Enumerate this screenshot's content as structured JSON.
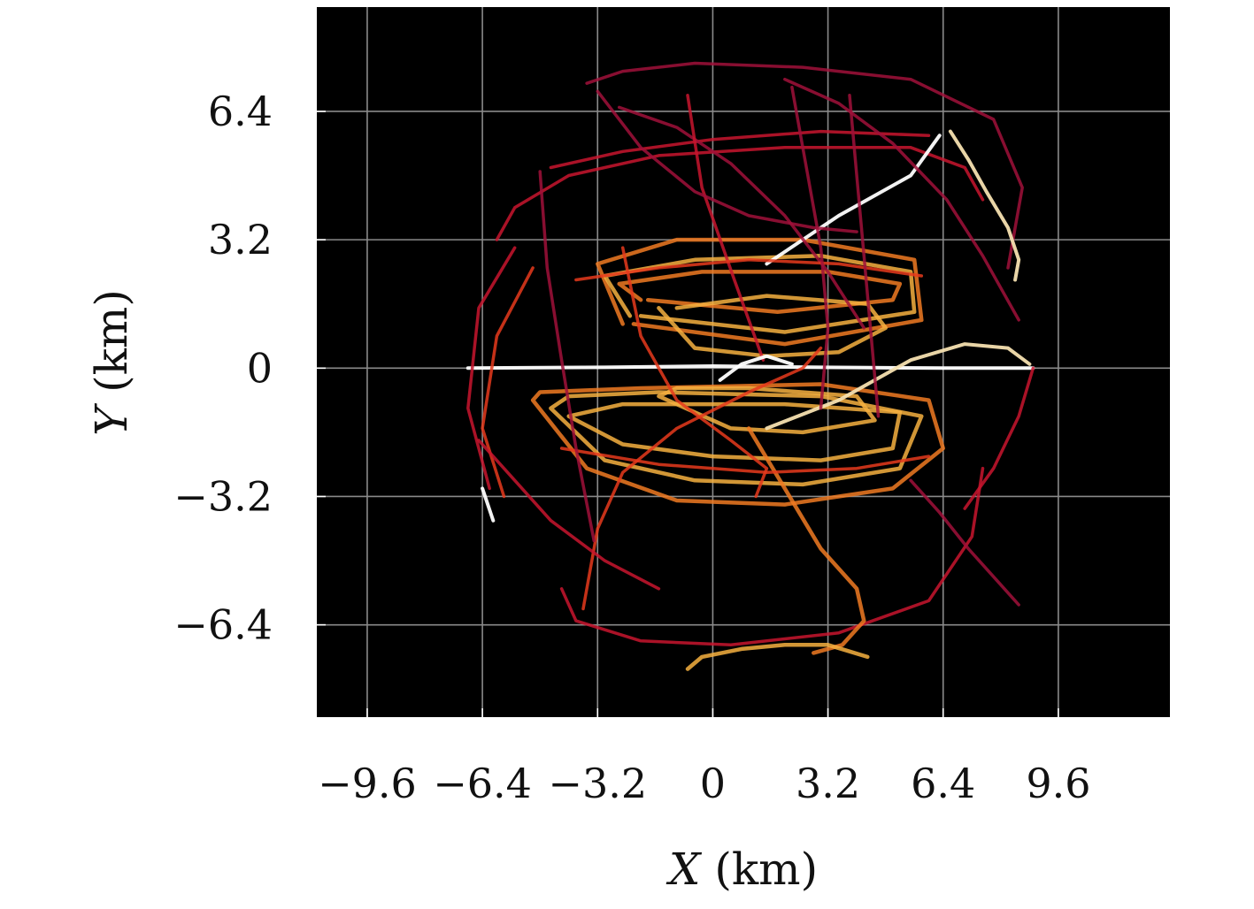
{
  "chart_data": {
    "type": "line",
    "xlabel_var": "X",
    "xlabel_unit": " (km)",
    "ylabel_var": "Y",
    "ylabel_unit": " (km)",
    "xlim": [
      -11.0,
      12.7
    ],
    "ylim": [
      -8.7,
      9.0
    ],
    "xticks": [
      -9.6,
      -6.4,
      -3.2,
      0,
      3.2,
      6.4,
      9.6
    ],
    "xtick_labels": [
      "−9.6",
      "−6.4",
      "−3.2",
      "0",
      "3.2",
      "6.4",
      "9.6"
    ],
    "yticks": [
      6.4,
      3.2,
      0,
      -3.2,
      -6.4
    ],
    "ytick_labels": [
      "6.4",
      "3.2",
      "0",
      "−3.2",
      "−6.4"
    ],
    "grid": true,
    "background": "#000000",
    "colormap": [
      "#a0103a",
      "#c8152e",
      "#e63a1c",
      "#f07a22",
      "#f6b040",
      "#f6e0b0",
      "#ffffff"
    ],
    "series": [
      {
        "x": [
          -6.8,
          -3.0,
          0,
          3.0,
          6.4,
          8.9
        ],
        "y": [
          0,
          0.02,
          0.05,
          0.02,
          0,
          0
        ],
        "level": 6
      },
      {
        "x": [
          -2.5,
          -3.2,
          -1.0,
          2.5,
          5.6,
          5.8,
          2.0,
          -2.2
        ],
        "y": [
          1.1,
          2.6,
          3.2,
          3.2,
          2.7,
          1.2,
          0.6,
          1.1
        ],
        "level": 3
      },
      {
        "x": [
          -2.3,
          -3.0,
          -0.5,
          3.0,
          5.5,
          5.6,
          2.0,
          -2.0
        ],
        "y": [
          1.3,
          2.3,
          2.7,
          2.8,
          2.4,
          1.4,
          0.9,
          1.3
        ],
        "level": 4
      },
      {
        "x": [
          -2.0,
          -2.6,
          -0.3,
          3.2,
          5.2,
          5.0,
          1.8,
          -1.8
        ],
        "y": [
          1.7,
          2.1,
          2.4,
          2.4,
          2.1,
          1.7,
          1.4,
          1.7
        ],
        "level": 3
      },
      {
        "x": [
          -1.5,
          -0.5,
          1.5,
          3.5,
          4.8,
          4.3,
          1.5,
          -1.0
        ],
        "y": [
          1.5,
          0.5,
          0.3,
          0.4,
          1.0,
          1.6,
          1.8,
          1.5
        ],
        "level": 4
      },
      {
        "x": [
          -5.0,
          -3.5,
          -1.0,
          2.0,
          5.0,
          6.4,
          6.0,
          3.0,
          -2.0,
          -4.8,
          -5.0
        ],
        "y": [
          -0.8,
          -2.5,
          -3.3,
          -3.4,
          -3.0,
          -2.0,
          -0.8,
          -0.4,
          -0.5,
          -0.6,
          -0.8
        ],
        "level": 3
      },
      {
        "x": [
          -4.5,
          -3.0,
          -0.5,
          2.5,
          5.2,
          5.8,
          3.0,
          -1.5,
          -4.0,
          -4.5
        ],
        "y": [
          -1.0,
          -2.3,
          -2.8,
          -2.9,
          -2.5,
          -1.2,
          -0.7,
          -0.6,
          -0.7,
          -1.0
        ],
        "level": 4
      },
      {
        "x": [
          -4.0,
          -2.5,
          0,
          3.0,
          5.0,
          5.2,
          2.0,
          -2.5,
          -4.0
        ],
        "y": [
          -1.2,
          -1.9,
          -2.2,
          -2.3,
          -2.0,
          -1.1,
          -0.9,
          -0.9,
          -1.2
        ],
        "level": 4
      },
      {
        "x": [
          -1.5,
          0.5,
          2.5,
          4.5,
          4.0,
          1.0,
          -1.0,
          -1.5
        ],
        "y": [
          -0.7,
          -1.5,
          -1.6,
          -1.3,
          -0.7,
          -0.5,
          -0.5,
          -0.7
        ],
        "level": 4
      },
      {
        "x": [
          -6.0,
          -5.5,
          -4.0,
          -1.5,
          2.0,
          5.5,
          7.0,
          7.5
        ],
        "y": [
          3.2,
          4.0,
          4.8,
          5.3,
          5.5,
          5.5,
          5.0,
          4.2
        ],
        "level": 1
      },
      {
        "x": [
          -4.5,
          -2.5,
          0,
          3.0,
          6.0
        ],
        "y": [
          5.0,
          5.4,
          5.7,
          5.9,
          5.8
        ],
        "level": 1
      },
      {
        "x": [
          -3.5,
          -2.5,
          -0.5,
          2.5,
          5.5,
          7.8,
          8.6,
          8.2
        ],
        "y": [
          7.1,
          7.4,
          7.6,
          7.5,
          7.2,
          6.2,
          4.5,
          2.5
        ],
        "level": 0
      },
      {
        "x": [
          -6.2,
          -6.8,
          -6.5,
          -5.5
        ],
        "y": [
          -3.0,
          -1.0,
          1.5,
          3.0
        ],
        "level": 1
      },
      {
        "x": [
          -5.8,
          -6.4,
          -6.0,
          -5.0
        ],
        "y": [
          -3.2,
          -1.5,
          0.8,
          2.5
        ],
        "level": 2
      },
      {
        "x": [
          -4.2,
          -3.8,
          -2.0,
          0.5,
          3.5,
          6.0,
          7.2,
          7.5
        ],
        "y": [
          -5.5,
          -6.3,
          -6.8,
          -6.9,
          -6.6,
          -5.8,
          -4.2,
          -2.5
        ],
        "level": 1
      },
      {
        "x": [
          1.0,
          2.0,
          3.0,
          4.0,
          4.2,
          3.6,
          2.8
        ],
        "y": [
          -1.5,
          -3.0,
          -4.5,
          -5.5,
          -6.3,
          -6.9,
          -7.1
        ],
        "level": 3
      },
      {
        "x": [
          -0.7,
          -0.3,
          0.8,
          2.0,
          3.2,
          4.3
        ],
        "y": [
          -7.5,
          -7.2,
          -7.0,
          -6.9,
          -6.9,
          -7.2
        ],
        "level": 4
      },
      {
        "x": [
          1.5,
          3.5,
          5.5,
          6.3
        ],
        "y": [
          2.6,
          3.8,
          4.8,
          5.8
        ],
        "level": 6
      },
      {
        "x": [
          1.5,
          3.5,
          5.5,
          7.0,
          8.2,
          8.8
        ],
        "y": [
          -1.5,
          -0.8,
          0.2,
          0.6,
          0.5,
          0.1
        ],
        "level": 5
      },
      {
        "x": [
          6.6,
          7.1,
          7.6,
          8.2,
          8.5,
          8.4
        ],
        "y": [
          5.9,
          5.2,
          4.4,
          3.5,
          2.7,
          2.2
        ],
        "level": 5
      },
      {
        "x": [
          -2.5,
          -2.0,
          -1.0,
          0.5,
          1.5,
          1.2
        ],
        "y": [
          3.0,
          0.8,
          -0.8,
          -1.8,
          -2.5,
          -3.2
        ],
        "level": 2
      },
      {
        "x": [
          -3.6,
          -3.2,
          -2.5,
          -1.0,
          1.0,
          2.5,
          3.0
        ],
        "y": [
          -6.0,
          -4.0,
          -2.6,
          -1.5,
          -0.6,
          0.0,
          0.5
        ],
        "level": 2
      },
      {
        "x": [
          -2.6,
          -1.0,
          0.5,
          2.0,
          3.2,
          4.2
        ],
        "y": [
          6.5,
          6.0,
          5.1,
          3.8,
          2.4,
          1.0
        ],
        "level": 0
      },
      {
        "x": [
          2.0,
          3.5,
          5.0,
          6.5,
          7.5,
          8.5
        ],
        "y": [
          7.2,
          6.6,
          5.6,
          4.2,
          2.8,
          1.2
        ],
        "level": 0
      },
      {
        "x": [
          7.0,
          7.8,
          8.5,
          8.9
        ],
        "y": [
          -3.5,
          -2.5,
          -1.2,
          0.0
        ],
        "level": 1
      },
      {
        "x": [
          -0.7,
          -0.3,
          0.6,
          1.4
        ],
        "y": [
          6.8,
          4.5,
          2.2,
          0.2
        ],
        "level": 1
      },
      {
        "x": [
          -3.2,
          -2.0,
          -0.5,
          1.0,
          2.8,
          4.0
        ],
        "y": [
          6.9,
          5.5,
          4.4,
          3.8,
          3.5,
          3.4
        ],
        "level": 0
      },
      {
        "x": [
          -6.5,
          -5.5,
          -4.5,
          -3.0,
          -1.5
        ],
        "y": [
          -1.8,
          -2.8,
          -3.8,
          -4.8,
          -5.5
        ],
        "level": 1
      },
      {
        "x": [
          -3.8,
          -1.5,
          1.0,
          3.5,
          5.8
        ],
        "y": [
          2.2,
          2.5,
          2.7,
          2.6,
          2.3
        ],
        "level": 2
      },
      {
        "x": [
          -4.2,
          -1.5,
          1.5,
          4.0,
          6.0
        ],
        "y": [
          -2.0,
          -2.4,
          -2.6,
          -2.5,
          -2.2
        ],
        "level": 2
      },
      {
        "x": [
          0.2,
          0.8,
          1.5,
          2.2
        ],
        "y": [
          -0.3,
          0.1,
          0.3,
          0.1
        ],
        "level": 6
      },
      {
        "x": [
          -6.4,
          -6.1
        ],
        "y": [
          -3.0,
          -3.8
        ],
        "level": 6
      },
      {
        "x": [
          5.5,
          6.3,
          7.1,
          7.9,
          8.5
        ],
        "y": [
          -2.8,
          -3.6,
          -4.5,
          -5.3,
          -5.9
        ],
        "level": 0
      },
      {
        "x": [
          2.2,
          2.6,
          3.0,
          3.2,
          3.0
        ],
        "y": [
          7.0,
          5.0,
          3.0,
          1.0,
          -1.0
        ],
        "level": 0
      },
      {
        "x": [
          -4.8,
          -4.6,
          -4.2,
          -3.8,
          -3.3
        ],
        "y": [
          4.9,
          2.5,
          0.2,
          -2.0,
          -4.3
        ],
        "level": 0
      },
      {
        "x": [
          3.8,
          4.0,
          4.2,
          4.4,
          4.6
        ],
        "y": [
          6.8,
          4.8,
          2.8,
          0.8,
          -1.2
        ],
        "level": 0
      }
    ]
  }
}
